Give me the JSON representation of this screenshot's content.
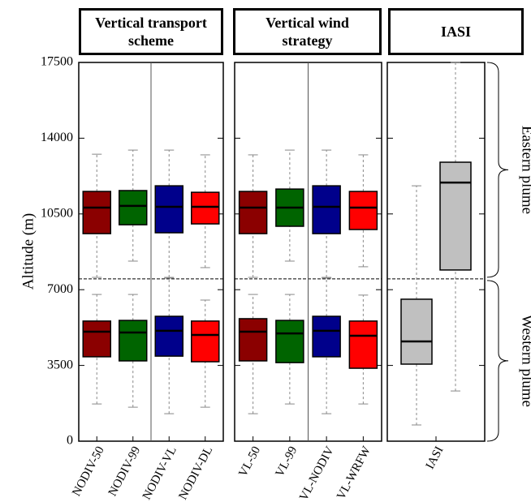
{
  "chart_data": {
    "type": "box",
    "y_label": "Altitude (m)",
    "ylim": [
      0,
      17500
    ],
    "yticks": [
      0,
      3500,
      7000,
      10500,
      14000,
      17500
    ],
    "separator": 7500,
    "region_labels": [
      "Eastern plume",
      "Western plume"
    ],
    "panels": [
      {
        "title": "Vertical transport scheme",
        "categories": [
          "NODIV-50",
          "NODIV-99",
          "NODIV-VL",
          "NODIV-DL"
        ],
        "colors": [
          "#8b0000",
          "#006400",
          "#00008b",
          "#ff0000"
        ],
        "eastern": [
          [
            7570,
            9590,
            10790,
            11540,
            13260
          ],
          [
            8320,
            10000,
            10870,
            11580,
            13450
          ],
          [
            7570,
            9630,
            10830,
            11800,
            13450
          ],
          [
            8020,
            10040,
            10830,
            11500,
            13230
          ]
        ],
        "western": [
          [
            1720,
            3900,
            5060,
            5550,
            6780
          ],
          [
            1570,
            3710,
            5020,
            5580,
            6780
          ],
          [
            1270,
            3930,
            5100,
            5770,
            7530
          ],
          [
            1570,
            3670,
            4910,
            5550,
            6520
          ]
        ]
      },
      {
        "title": "Vertical wind strategy",
        "categories": [
          "VL-50",
          "VL-99",
          "VL-NODIV",
          "VL-WRFW"
        ],
        "colors": [
          "#8b0000",
          "#006400",
          "#00008b",
          "#ff0000"
        ],
        "eastern": [
          [
            7570,
            9590,
            10790,
            11540,
            13230
          ],
          [
            8320,
            9930,
            10790,
            11650,
            13450
          ],
          [
            7570,
            9590,
            10830,
            11800,
            13450
          ],
          [
            8060,
            9780,
            10790,
            11540,
            13230
          ]
        ],
        "western": [
          [
            1270,
            3710,
            5060,
            5660,
            6780
          ],
          [
            1720,
            3630,
            4980,
            5580,
            6780
          ],
          [
            1270,
            3900,
            5100,
            5770,
            7530
          ],
          [
            1720,
            3370,
            4870,
            5550,
            6750
          ]
        ]
      },
      {
        "title": "IASI",
        "categories": [
          "IASI"
        ],
        "colors": [
          "#c0c0c0"
        ],
        "eastern": [
          [
            2320,
            7910,
            11950,
            12890,
            17500
          ]
        ],
        "western": [
          [
            750,
            3560,
            4610,
            6560,
            11800
          ]
        ]
      }
    ]
  }
}
